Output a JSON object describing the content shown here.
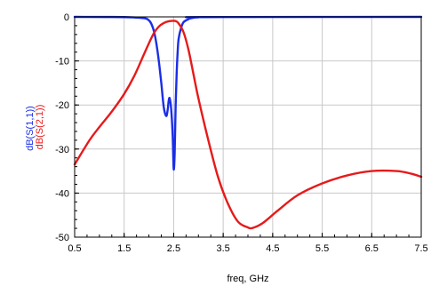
{
  "chart_data": {
    "type": "line",
    "xlabel": "freq, GHz",
    "ylabel_parts": [
      "dB(S(1,1))",
      "dB(S(2,1))"
    ],
    "xlim": [
      0.5,
      7.5
    ],
    "ylim": [
      -50,
      0
    ],
    "xticks": [
      "0.5",
      "1.5",
      "2.5",
      "3.5",
      "4.5",
      "5.5",
      "6.5",
      "7.5"
    ],
    "xtick_values": [
      0.5,
      1.5,
      2.5,
      3.5,
      4.5,
      5.5,
      6.5,
      7.5
    ],
    "yticks": [
      "0",
      "-10",
      "-20",
      "-30",
      "-40",
      "-50"
    ],
    "ytick_values": [
      0,
      -10,
      -20,
      -30,
      -40,
      -50
    ],
    "grid": true,
    "series": [
      {
        "name": "dB(S(1,1))",
        "color": "#1a2ee6",
        "x": [
          0.5,
          1.5,
          1.9,
          2.0,
          2.05,
          2.1,
          2.15,
          2.2,
          2.25,
          2.3,
          2.35,
          2.38,
          2.4,
          2.42,
          2.45,
          2.48,
          2.5,
          2.52,
          2.54,
          2.56,
          2.58,
          2.6,
          2.65,
          2.7,
          2.8,
          2.9,
          3.0,
          3.1,
          7.5
        ],
        "y": [
          0,
          -0.05,
          -0.3,
          -0.8,
          -1.6,
          -3.2,
          -6.0,
          -10.0,
          -15.0,
          -20.5,
          -22.5,
          -21.0,
          -19.0,
          -18.5,
          -21.0,
          -27.0,
          -34.5,
          -31.0,
          -20.0,
          -13.0,
          -8.0,
          -5.0,
          -2.5,
          -1.2,
          -0.5,
          -0.2,
          -0.1,
          -0.05,
          0
        ]
      },
      {
        "name": "dB(S(2,1))",
        "color": "#e61a1a",
        "x": [
          0.5,
          0.8,
          1.0,
          1.25,
          1.5,
          1.7,
          1.9,
          2.0,
          2.1,
          2.2,
          2.3,
          2.4,
          2.5,
          2.55,
          2.6,
          2.7,
          2.8,
          2.9,
          3.0,
          3.2,
          3.4,
          3.6,
          3.8,
          4.0,
          4.1,
          4.3,
          4.6,
          5.0,
          5.5,
          6.0,
          6.5,
          7.0,
          7.3,
          7.5
        ],
        "y": [
          -33.5,
          -28.0,
          -25.0,
          -21.5,
          -17.5,
          -13.5,
          -8.5,
          -6.0,
          -3.7,
          -2.2,
          -1.4,
          -1.0,
          -0.9,
          -1.0,
          -1.5,
          -3.5,
          -7.5,
          -13.0,
          -18.5,
          -28.0,
          -36.5,
          -42.5,
          -46.5,
          -47.8,
          -47.9,
          -46.8,
          -44.0,
          -40.5,
          -37.8,
          -36.0,
          -35.0,
          -35.0,
          -35.6,
          -36.3
        ]
      }
    ]
  }
}
